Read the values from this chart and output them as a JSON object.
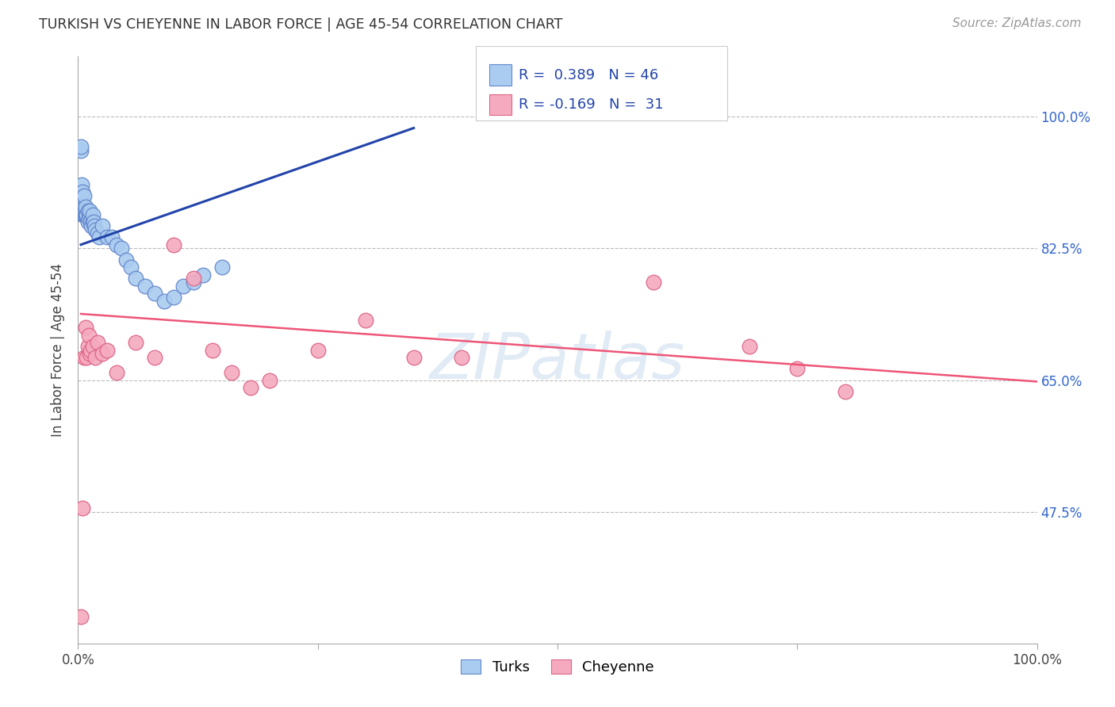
{
  "title": "TURKISH VS CHEYENNE IN LABOR FORCE | AGE 45-54 CORRELATION CHART",
  "source": "Source: ZipAtlas.com",
  "ylabel": "In Labor Force | Age 45-54",
  "xlim": [
    0.0,
    1.0
  ],
  "ylim": [
    0.3,
    1.08
  ],
  "yticks": [
    0.475,
    0.65,
    0.825,
    1.0
  ],
  "ytick_labels": [
    "47.5%",
    "65.0%",
    "82.5%",
    "100.0%"
  ],
  "xticks": [
    0.0,
    0.25,
    0.5,
    0.75,
    1.0
  ],
  "xtick_labels": [
    "0.0%",
    "",
    "",
    "",
    "100.0%"
  ],
  "background_color": "#ffffff",
  "grid_color": "#bbbbbb",
  "turks_color": "#aaccf0",
  "cheyenne_color": "#f5aabf",
  "turks_edge_color": "#6688cc",
  "cheyenne_edge_color": "#dd6688",
  "blue_line_color": "#2244aa",
  "pink_line_color": "#ee5577",
  "right_tick_color": "#3366cc",
  "legend_R1": "R =  0.389   N = 46",
  "legend_R2": "R = -0.169   N =  31",
  "watermark": "ZIPatlas",
  "turks_x": [
    0.003,
    0.003,
    0.004,
    0.004,
    0.004,
    0.005,
    0.005,
    0.005,
    0.006,
    0.006,
    0.006,
    0.007,
    0.007,
    0.008,
    0.008,
    0.009,
    0.01,
    0.01,
    0.011,
    0.012,
    0.012,
    0.013,
    0.014,
    0.015,
    0.015,
    0.016,
    0.017,
    0.018,
    0.02,
    0.022,
    0.025,
    0.03,
    0.035,
    0.04,
    0.045,
    0.05,
    0.055,
    0.06,
    0.07,
    0.08,
    0.09,
    0.1,
    0.11,
    0.12,
    0.13,
    0.15
  ],
  "turks_y": [
    0.955,
    0.96,
    0.88,
    0.895,
    0.91,
    0.87,
    0.885,
    0.9,
    0.87,
    0.88,
    0.895,
    0.87,
    0.875,
    0.87,
    0.88,
    0.87,
    0.86,
    0.875,
    0.865,
    0.87,
    0.875,
    0.86,
    0.855,
    0.86,
    0.87,
    0.86,
    0.855,
    0.85,
    0.845,
    0.84,
    0.855,
    0.84,
    0.84,
    0.83,
    0.825,
    0.81,
    0.8,
    0.785,
    0.775,
    0.765,
    0.755,
    0.76,
    0.775,
    0.78,
    0.79,
    0.8
  ],
  "cheyenne_x": [
    0.003,
    0.005,
    0.006,
    0.008,
    0.009,
    0.01,
    0.011,
    0.012,
    0.013,
    0.015,
    0.018,
    0.02,
    0.025,
    0.03,
    0.04,
    0.06,
    0.08,
    0.1,
    0.12,
    0.14,
    0.16,
    0.18,
    0.2,
    0.25,
    0.3,
    0.35,
    0.4,
    0.6,
    0.7,
    0.75,
    0.8
  ],
  "cheyenne_y": [
    0.335,
    0.48,
    0.68,
    0.72,
    0.68,
    0.695,
    0.71,
    0.685,
    0.69,
    0.695,
    0.68,
    0.7,
    0.685,
    0.69,
    0.66,
    0.7,
    0.68,
    0.83,
    0.785,
    0.69,
    0.66,
    0.64,
    0.65,
    0.69,
    0.73,
    0.68,
    0.68,
    0.78,
    0.695,
    0.665,
    0.635
  ],
  "blue_line_x": [
    0.003,
    0.35
  ],
  "blue_line_y": [
    0.83,
    0.985
  ],
  "pink_line_x": [
    0.003,
    1.0
  ],
  "pink_line_y": [
    0.738,
    0.648
  ]
}
